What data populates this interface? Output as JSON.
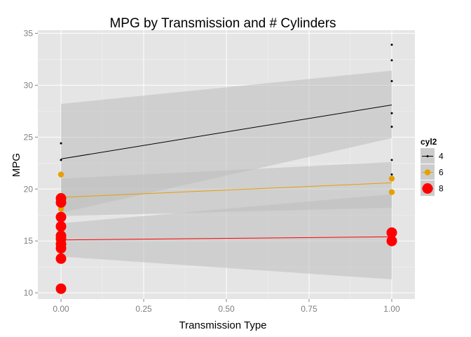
{
  "chart_data": {
    "type": "scatter",
    "title": "MPG by Transmission and # Cylinders",
    "xlabel": "Transmission Type",
    "ylabel": "MPG",
    "xlim": [
      -0.07,
      1.07
    ],
    "ylim": [
      9.4,
      35.3
    ],
    "x_ticks": [
      0,
      0.25,
      0.5,
      0.75,
      1
    ],
    "x_tick_labels": [
      "0.00",
      "0.25",
      "0.50",
      "0.75",
      "1.00"
    ],
    "y_ticks": [
      10,
      15,
      20,
      25,
      30,
      35
    ],
    "y_tick_labels": [
      "10",
      "15",
      "20",
      "25",
      "30",
      "35"
    ],
    "grid": true,
    "legend": {
      "title": "cyl2",
      "position": "right",
      "entries": [
        "4",
        "6",
        "8"
      ]
    },
    "colors": {
      "panel": "#e5e5e5",
      "grid": "#ffffff",
      "band": "#bdbdbd",
      "tick_label": "#7f7f7f"
    },
    "series": [
      {
        "name": "4",
        "color": "#000000",
        "marker_size": "small",
        "points": [
          {
            "x": 0,
            "y": 24.4
          },
          {
            "x": 0,
            "y": 22.8
          },
          {
            "x": 0,
            "y": 21.5
          },
          {
            "x": 1,
            "y": 33.9
          },
          {
            "x": 1,
            "y": 32.4
          },
          {
            "x": 1,
            "y": 30.4
          },
          {
            "x": 1,
            "y": 27.3
          },
          {
            "x": 1,
            "y": 26.0
          },
          {
            "x": 1,
            "y": 22.8
          },
          {
            "x": 1,
            "y": 21.4
          }
        ],
        "fit": {
          "y0": 22.9,
          "y1": 28.1
        },
        "ci_lower": {
          "y0": 17.7,
          "y1": 24.9
        },
        "ci_upper": {
          "y0": 28.2,
          "y1": 31.4
        }
      },
      {
        "name": "6",
        "color": "#e69f00",
        "marker_size": "medium",
        "points": [
          {
            "x": 0,
            "y": 21.4
          },
          {
            "x": 0,
            "y": 18.1
          },
          {
            "x": 1,
            "y": 21.0
          },
          {
            "x": 1,
            "y": 19.7
          }
        ],
        "fit": {
          "y0": 19.2,
          "y1": 20.6
        },
        "ci_lower": {
          "y0": 17.4,
          "y1": 18.2
        },
        "ci_upper": {
          "y0": 21.0,
          "y1": 22.6
        }
      },
      {
        "name": "8",
        "color": "#ff0000",
        "marker_size": "large",
        "points": [
          {
            "x": 0,
            "y": 19.1
          },
          {
            "x": 0,
            "y": 18.7
          },
          {
            "x": 0,
            "y": 17.3
          },
          {
            "x": 0,
            "y": 16.4
          },
          {
            "x": 0,
            "y": 15.5
          },
          {
            "x": 0,
            "y": 15.2
          },
          {
            "x": 0,
            "y": 14.7
          },
          {
            "x": 0,
            "y": 14.3
          },
          {
            "x": 0,
            "y": 13.3
          },
          {
            "x": 0,
            "y": 10.4
          },
          {
            "x": 1,
            "y": 15.8
          },
          {
            "x": 1,
            "y": 15.0
          }
        ],
        "fit": {
          "y0": 15.1,
          "y1": 15.4
        },
        "ci_lower": {
          "y0": 13.5,
          "y1": 11.3
        },
        "ci_upper": {
          "y0": 16.7,
          "y1": 19.5
        }
      }
    ]
  }
}
